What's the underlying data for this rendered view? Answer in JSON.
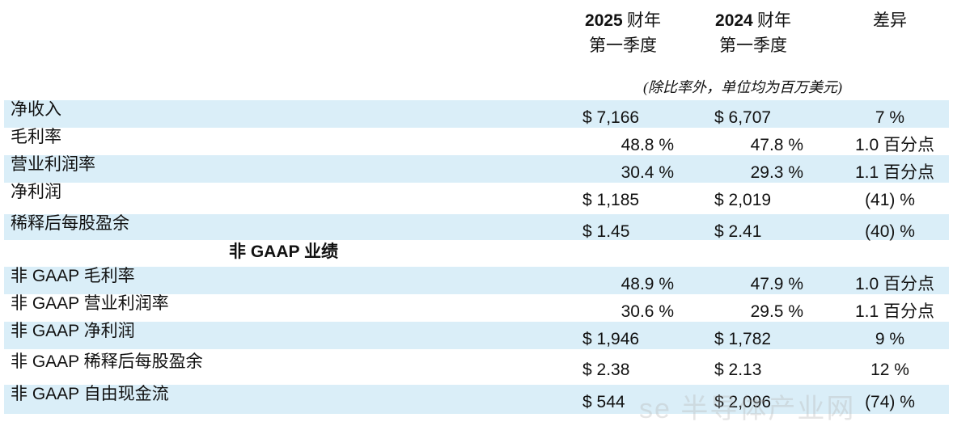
{
  "header": {
    "col1_year": "2025",
    "col1_suffix": " 财年",
    "col1_line2": "第一季度",
    "col2_year": "2024",
    "col2_suffix": " 财年",
    "col2_line2": "第一季度",
    "col3": "差异",
    "note": "(除比率外，单位均为百万美元)"
  },
  "rows": [
    {
      "label": "净收入",
      "v1": "$ 7,166",
      "v2": "$ 6,707",
      "v3": "7 %"
    },
    {
      "label": "毛利率",
      "v1": "48.8 %",
      "v2": "47.8 %",
      "v3": "1.0 百分点"
    },
    {
      "label": "营业利润率",
      "v1": "30.4 %",
      "v2": "29.3 %",
      "v3": "1.1 百分点"
    },
    {
      "label": "净利润",
      "v1": "$ 1,185",
      "v2": "$ 2,019",
      "v3": "(41) %"
    },
    {
      "label": "稀释后每股盈余",
      "v1": "$ 1.45",
      "v2": "$ 2.41",
      "v3": "(40) %"
    },
    {
      "section": "非 GAAP 业绩"
    },
    {
      "label": "非 GAAP 毛利率",
      "v1": "48.9 %",
      "v2": "47.9 %",
      "v3": "1.0 百分点"
    },
    {
      "label": "非 GAAP 营业利润率",
      "v1": "30.6 %",
      "v2": "29.5 %",
      "v3": "1.1 百分点"
    },
    {
      "label": "非 GAAP 净利润",
      "v1": "$ 1,946",
      "v2": "$ 1,782",
      "v3": "9 %"
    },
    {
      "label": "非 GAAP 稀释后每股盈余",
      "v1": "$ 2.38",
      "v2": "$ 2.13",
      "v3": "12 %"
    },
    {
      "label": "非 GAAP 自由现金流",
      "v1": "$ 544",
      "v2": "$ 2,096",
      "v3": "(74) %"
    }
  ],
  "watermark": "se 半导体产业网",
  "colors": {
    "shade": "#daeef8"
  }
}
